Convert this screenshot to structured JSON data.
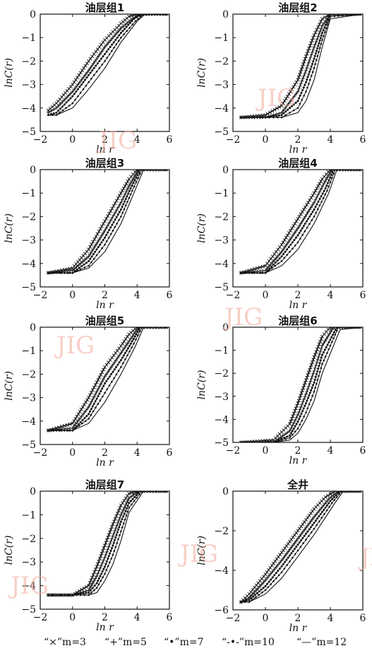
{
  "watermark": "JIG",
  "legend": {
    "text": "“×”m=3   “+”m=5   “•”m=7   “-•-”m=10   “—”m=12",
    "entries": [
      {
        "label": "“×”m=3",
        "marker": "x"
      },
      {
        "label": "“+”m=5",
        "marker": "plus"
      },
      {
        "label": "“•”m=7",
        "marker": "dot"
      },
      {
        "label": "“-•-”m=10",
        "marker": "line-dot"
      },
      {
        "label": "“—”m=12",
        "marker": "line"
      }
    ]
  },
  "chart_data": [
    {
      "type": "line",
      "title": "油层组1",
      "xlabel": "ln r",
      "ylabel": "lnC(r)",
      "xlim": [
        -2,
        6
      ],
      "ylim": [
        -5,
        0
      ],
      "xticks": [
        -2,
        0,
        2,
        4,
        6
      ],
      "yticks": [
        0,
        -1,
        -2,
        -3,
        -4,
        -5
      ],
      "series": [
        {
          "name": "m=3",
          "x": [
            -1.5,
            -1,
            0,
            1,
            2,
            3,
            3.5,
            4,
            4.5,
            6
          ],
          "y": [
            -4.1,
            -3.8,
            -3.0,
            -2.0,
            -1.1,
            -0.4,
            -0.1,
            0,
            0,
            0
          ]
        },
        {
          "name": "m=5",
          "x": [
            -1.5,
            -1,
            0,
            1,
            2,
            3,
            3.7,
            4.2,
            4.7,
            6
          ],
          "y": [
            -4.2,
            -4.0,
            -3.3,
            -2.4,
            -1.4,
            -0.6,
            -0.2,
            0,
            0,
            0
          ]
        },
        {
          "name": "m=7",
          "x": [
            -1.5,
            -1,
            0,
            1,
            2,
            3,
            3.8,
            4.3,
            4.8,
            6
          ],
          "y": [
            -4.3,
            -4.2,
            -3.5,
            -2.6,
            -1.7,
            -0.8,
            -0.2,
            0,
            0,
            0
          ]
        },
        {
          "name": "m=10",
          "x": [
            -1.5,
            -1,
            0,
            1,
            2,
            3,
            3.9,
            4.4,
            4.9,
            6
          ],
          "y": [
            -4.3,
            -4.3,
            -3.8,
            -2.9,
            -2.0,
            -1.0,
            -0.3,
            0,
            0,
            0
          ]
        },
        {
          "name": "m=12",
          "x": [
            -1.5,
            -1,
            0,
            1,
            2,
            3,
            4.0,
            4.5,
            5.0,
            6
          ],
          "y": [
            -4.3,
            -4.3,
            -4.0,
            -3.2,
            -2.3,
            -1.2,
            -0.3,
            0,
            0,
            0
          ]
        }
      ]
    },
    {
      "type": "line",
      "title": "油层组2",
      "xlabel": "ln r",
      "ylabel": "lnC(r)",
      "xlim": [
        -2,
        6
      ],
      "ylim": [
        -5,
        0
      ],
      "xticks": [
        -2,
        0,
        2,
        4,
        6
      ],
      "yticks": [
        0,
        -1,
        -2,
        -3,
        -4,
        -5
      ],
      "series": [
        {
          "name": "m=3",
          "x": [
            -1.5,
            0,
            1,
            2,
            2.5,
            3,
            3.5,
            4,
            6
          ],
          "y": [
            -4.4,
            -4.3,
            -3.9,
            -2.8,
            -1.8,
            -0.9,
            -0.2,
            0,
            0
          ]
        },
        {
          "name": "m=5",
          "x": [
            -1.5,
            0,
            1,
            2,
            2.5,
            3,
            3.5,
            4,
            6
          ],
          "y": [
            -4.4,
            -4.4,
            -4.2,
            -3.3,
            -2.4,
            -1.4,
            -0.5,
            0,
            0
          ]
        },
        {
          "name": "m=7",
          "x": [
            -1.5,
            0,
            1,
            2,
            2.5,
            3,
            3.5,
            4,
            6
          ],
          "y": [
            -4.4,
            -4.4,
            -4.3,
            -3.7,
            -2.9,
            -1.9,
            -0.8,
            0,
            0
          ]
        },
        {
          "name": "m=10",
          "x": [
            -1.5,
            0,
            1,
            2,
            2.5,
            3,
            3.5,
            4,
            6
          ],
          "y": [
            -4.4,
            -4.4,
            -4.4,
            -4.0,
            -3.3,
            -2.3,
            -1.1,
            -0.1,
            0
          ]
        },
        {
          "name": "m=12",
          "x": [
            -1.5,
            0,
            1,
            2,
            2.5,
            3,
            3.5,
            4,
            6
          ],
          "y": [
            -4.4,
            -4.4,
            -4.4,
            -4.2,
            -3.7,
            -2.8,
            -1.4,
            -0.2,
            0
          ]
        }
      ]
    },
    {
      "type": "line",
      "title": "油层组3",
      "xlabel": "ln r",
      "ylabel": "lnC(r)",
      "xlim": [
        -2,
        6
      ],
      "ylim": [
        -5,
        0
      ],
      "xticks": [
        -2,
        0,
        2,
        4,
        6
      ],
      "yticks": [
        0,
        -1,
        -2,
        -3,
        -4,
        -5
      ],
      "series": [
        {
          "name": "m=3",
          "x": [
            -1.5,
            0,
            1,
            2,
            3,
            3.5,
            4,
            6
          ],
          "y": [
            -4.4,
            -4.2,
            -3.4,
            -2.2,
            -1.0,
            -0.4,
            0,
            0
          ]
        },
        {
          "name": "m=5",
          "x": [
            -1.5,
            0,
            1,
            2,
            3,
            3.5,
            4.1,
            6
          ],
          "y": [
            -4.4,
            -4.3,
            -3.7,
            -2.6,
            -1.4,
            -0.7,
            0,
            0
          ]
        },
        {
          "name": "m=7",
          "x": [
            -1.5,
            0,
            1,
            2,
            3,
            3.6,
            4.2,
            6
          ],
          "y": [
            -4.4,
            -4.4,
            -3.9,
            -2.9,
            -1.7,
            -0.8,
            0,
            0
          ]
        },
        {
          "name": "m=10",
          "x": [
            -1.5,
            0,
            1,
            2,
            3,
            3.7,
            4.3,
            6
          ],
          "y": [
            -4.4,
            -4.4,
            -4.1,
            -3.2,
            -2.0,
            -0.9,
            0,
            0
          ]
        },
        {
          "name": "m=12",
          "x": [
            -1.5,
            0,
            1,
            2,
            3,
            3.8,
            4.4,
            6
          ],
          "y": [
            -4.4,
            -4.4,
            -4.2,
            -3.5,
            -2.3,
            -1.0,
            0,
            0
          ]
        }
      ]
    },
    {
      "type": "line",
      "title": "油层组4",
      "xlabel": "ln r",
      "ylabel": "lnC(r)",
      "xlim": [
        -2,
        6
      ],
      "ylim": [
        -5,
        0
      ],
      "xticks": [
        -2,
        0,
        2,
        4,
        6
      ],
      "yticks": [
        0,
        -1,
        -2,
        -3,
        -4,
        -5
      ],
      "series": [
        {
          "name": "m=3",
          "x": [
            -1.5,
            0,
            1,
            2,
            3,
            3.5,
            4,
            6
          ],
          "y": [
            -4.4,
            -4.1,
            -3.2,
            -2.1,
            -1.0,
            -0.4,
            0,
            0
          ]
        },
        {
          "name": "m=5",
          "x": [
            -1.5,
            0,
            1,
            2,
            3,
            3.6,
            4.1,
            6
          ],
          "y": [
            -4.4,
            -4.3,
            -3.5,
            -2.5,
            -1.4,
            -0.6,
            0,
            0
          ]
        },
        {
          "name": "m=7",
          "x": [
            -1.5,
            0,
            1,
            2,
            3,
            3.7,
            4.2,
            6
          ],
          "y": [
            -4.4,
            -4.4,
            -3.7,
            -2.8,
            -1.7,
            -0.8,
            0,
            0
          ]
        },
        {
          "name": "m=10",
          "x": [
            -1.5,
            0,
            1,
            2,
            3,
            3.8,
            4.3,
            6
          ],
          "y": [
            -4.4,
            -4.4,
            -3.9,
            -3.1,
            -2.0,
            -0.9,
            0,
            0
          ]
        },
        {
          "name": "m=12",
          "x": [
            -1.5,
            0,
            1,
            2,
            3,
            3.9,
            4.4,
            6
          ],
          "y": [
            -4.4,
            -4.4,
            -4.1,
            -3.4,
            -2.3,
            -1.0,
            0,
            0
          ]
        }
      ]
    },
    {
      "type": "line",
      "title": "油层组5",
      "xlabel": "ln r",
      "ylabel": "lnC(r)",
      "xlim": [
        -2,
        6
      ],
      "ylim": [
        -5,
        0
      ],
      "xticks": [
        -2,
        0,
        2,
        4,
        6
      ],
      "yticks": [
        0,
        -1,
        -2,
        -3,
        -4,
        -5
      ],
      "series": [
        {
          "name": "m=3",
          "x": [
            -1.5,
            0,
            1,
            2,
            3,
            3.5,
            4,
            6
          ],
          "y": [
            -4.4,
            -4.1,
            -3.0,
            -1.7,
            -0.8,
            -0.3,
            0,
            0
          ]
        },
        {
          "name": "m=5",
          "x": [
            -1.5,
            0,
            1,
            2,
            3,
            3.6,
            4.1,
            6
          ],
          "y": [
            -4.4,
            -4.3,
            -3.4,
            -2.1,
            -1.1,
            -0.5,
            0,
            0
          ]
        },
        {
          "name": "m=7",
          "x": [
            -1.5,
            0,
            1,
            2,
            3,
            3.7,
            4.2,
            6
          ],
          "y": [
            -4.4,
            -4.4,
            -3.7,
            -2.4,
            -1.4,
            -0.6,
            0,
            0
          ]
        },
        {
          "name": "m=10",
          "x": [
            -1.5,
            0,
            1,
            2,
            3,
            3.8,
            4.3,
            6
          ],
          "y": [
            -4.4,
            -4.4,
            -3.9,
            -2.8,
            -1.7,
            -0.7,
            0,
            0
          ]
        },
        {
          "name": "m=12",
          "x": [
            -1.5,
            0,
            1,
            2,
            3,
            3.9,
            4.4,
            6
          ],
          "y": [
            -4.4,
            -4.4,
            -4.1,
            -3.2,
            -2.0,
            -0.8,
            0,
            0
          ]
        }
      ]
    },
    {
      "type": "line",
      "title": "油层组6",
      "xlabel": "ln r",
      "ylabel": "lnC(r)",
      "xlim": [
        -2,
        6
      ],
      "ylim": [
        -5,
        0
      ],
      "xticks": [
        -2,
        0,
        2,
        4,
        6
      ],
      "yticks": [
        0,
        -1,
        -2,
        -3,
        -4,
        -5
      ],
      "series": [
        {
          "name": "m=3",
          "x": [
            -1.5,
            0.5,
            1.5,
            2,
            2.5,
            3,
            3.5,
            4,
            6
          ],
          "y": [
            -5.0,
            -4.9,
            -4.2,
            -3.3,
            -2.3,
            -1.3,
            -0.4,
            0,
            0
          ]
        },
        {
          "name": "m=5",
          "x": [
            -1.5,
            0.5,
            1.5,
            2,
            2.5,
            3,
            3.5,
            4.2,
            6
          ],
          "y": [
            -5.0,
            -5.0,
            -4.5,
            -3.8,
            -2.9,
            -1.9,
            -0.8,
            0,
            0
          ]
        },
        {
          "name": "m=7",
          "x": [
            -1.5,
            0.5,
            1.5,
            2,
            2.5,
            3,
            3.5,
            4.4,
            6
          ],
          "y": [
            -5.0,
            -5.0,
            -4.7,
            -4.1,
            -3.3,
            -2.4,
            -1.2,
            0,
            0
          ]
        },
        {
          "name": "m=10",
          "x": [
            -1.5,
            0.5,
            1.5,
            2,
            2.5,
            3,
            3.5,
            4.5,
            6
          ],
          "y": [
            -5.0,
            -5.0,
            -4.8,
            -4.4,
            -3.7,
            -2.8,
            -1.6,
            0,
            0
          ]
        },
        {
          "name": "m=12",
          "x": [
            -1.5,
            0.5,
            1.5,
            2,
            2.5,
            3,
            3.5,
            4.6,
            6
          ],
          "y": [
            -5.0,
            -5.0,
            -4.9,
            -4.6,
            -4.0,
            -3.2,
            -2.0,
            -0.1,
            0
          ]
        }
      ]
    },
    {
      "type": "line",
      "title": "油层组7",
      "xlabel": "ln r",
      "ylabel": "lnC(r)",
      "xlim": [
        -2,
        6
      ],
      "ylim": [
        -5,
        0
      ],
      "xticks": [
        -2,
        0,
        2,
        4,
        6
      ],
      "yticks": [
        0,
        -1,
        -2,
        -3,
        -4,
        -5
      ],
      "series": [
        {
          "name": "m=3",
          "x": [
            -1.5,
            0,
            1,
            1.5,
            2,
            2.5,
            3,
            3.5,
            4,
            6
          ],
          "y": [
            -4.4,
            -4.4,
            -4.0,
            -3.2,
            -2.3,
            -1.4,
            -0.6,
            -0.1,
            0,
            0
          ]
        },
        {
          "name": "m=5",
          "x": [
            -1.5,
            0,
            1,
            1.5,
            2,
            2.5,
            3,
            3.5,
            4.1,
            6
          ],
          "y": [
            -4.4,
            -4.4,
            -4.2,
            -3.6,
            -2.8,
            -1.9,
            -1.0,
            -0.3,
            0,
            0
          ]
        },
        {
          "name": "m=7",
          "x": [
            -1.5,
            0,
            1,
            1.5,
            2,
            2.5,
            3,
            3.5,
            4.2,
            6
          ],
          "y": [
            -4.4,
            -4.4,
            -4.3,
            -3.9,
            -3.2,
            -2.3,
            -1.3,
            -0.5,
            0,
            0
          ]
        },
        {
          "name": "m=10",
          "x": [
            -1.5,
            0,
            1,
            1.5,
            2,
            2.5,
            3,
            3.5,
            4.3,
            6
          ],
          "y": [
            -4.4,
            -4.4,
            -4.4,
            -4.1,
            -3.5,
            -2.7,
            -1.7,
            -0.7,
            0,
            0
          ]
        },
        {
          "name": "m=12",
          "x": [
            -1.5,
            0,
            1,
            1.5,
            2,
            2.5,
            3,
            3.5,
            4.4,
            6
          ],
          "y": [
            -4.4,
            -4.4,
            -4.4,
            -4.3,
            -3.8,
            -3.1,
            -2.1,
            -0.9,
            0,
            0
          ]
        }
      ]
    },
    {
      "type": "line",
      "title": "全井",
      "xlabel": "ln r",
      "ylabel": "lnC(r)",
      "xlim": [
        -2,
        6
      ],
      "ylim": [
        -6,
        0
      ],
      "xticks": [
        -2,
        0,
        2,
        4,
        6
      ],
      "yticks": [
        0,
        -2,
        -4,
        -6
      ],
      "series": [
        {
          "name": "m=3",
          "x": [
            -1.5,
            -1,
            0,
            1,
            2,
            3,
            3.7,
            4.3,
            6
          ],
          "y": [
            -5.6,
            -5.2,
            -4.2,
            -3.1,
            -2.0,
            -0.9,
            -0.3,
            0,
            0
          ]
        },
        {
          "name": "m=5",
          "x": [
            -1.5,
            -1,
            0,
            1,
            2,
            3,
            3.9,
            4.5,
            6
          ],
          "y": [
            -5.6,
            -5.4,
            -4.5,
            -3.5,
            -2.4,
            -1.3,
            -0.4,
            0,
            0
          ]
        },
        {
          "name": "m=7",
          "x": [
            -1.5,
            -1,
            0,
            1,
            2,
            3,
            4.0,
            4.6,
            6
          ],
          "y": [
            -5.6,
            -5.5,
            -4.8,
            -3.8,
            -2.7,
            -1.6,
            -0.5,
            0,
            0
          ]
        },
        {
          "name": "m=10",
          "x": [
            -1.5,
            -1,
            0,
            1,
            2,
            3,
            4.1,
            4.7,
            6
          ],
          "y": [
            -5.6,
            -5.6,
            -5.0,
            -4.1,
            -3.0,
            -1.9,
            -0.6,
            0,
            0
          ]
        },
        {
          "name": "m=12",
          "x": [
            -1.5,
            -1,
            0,
            1,
            2,
            3,
            4.2,
            4.8,
            6
          ],
          "y": [
            -5.6,
            -5.6,
            -5.2,
            -4.4,
            -3.3,
            -2.2,
            -0.7,
            0,
            0
          ]
        }
      ]
    }
  ]
}
